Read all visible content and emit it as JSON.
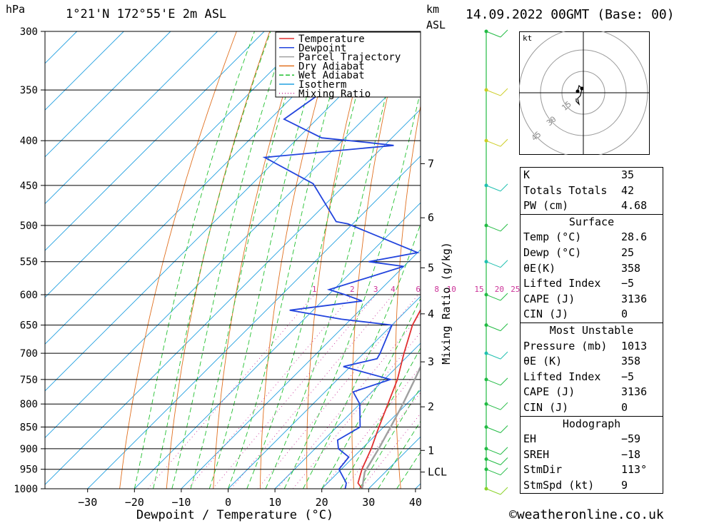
{
  "header": {
    "pressure_unit": "hPa",
    "location": "1°21'N  172°55'E  2m  ASL",
    "km_unit": "km",
    "asl_unit": "ASL",
    "datetime": "14.09.2022  00GMT  (Base: 00)"
  },
  "credit": "©weatheronline.co.uk",
  "chart_data": {
    "type": "line",
    "title": "1°21'N  172°55'E  2m  ASL",
    "xlabel": "Dewpoint / Temperature (°C)",
    "ylabel": "hPa",
    "right_axis_label": "Mixing Ratio (g/kg)",
    "x_ticks": [
      -30,
      -20,
      -10,
      0,
      10,
      20,
      30,
      40
    ],
    "x_tick_labels": [
      "−30",
      "−20",
      "−10",
      "0",
      "10",
      "20",
      "30",
      "40"
    ],
    "pressure_levels": [
      300,
      350,
      400,
      450,
      500,
      550,
      600,
      650,
      700,
      750,
      800,
      850,
      900,
      950,
      1000
    ],
    "xlim": [
      -40,
      40
    ],
    "ylim": [
      1000,
      300
    ],
    "y_scale": "log",
    "skew": "45°",
    "km_ticks": [
      {
        "label": "7",
        "pressure": 425
      },
      {
        "label": "6",
        "pressure": 490
      },
      {
        "label": "5",
        "pressure": 559
      },
      {
        "label": "4",
        "pressure": 631
      },
      {
        "label": "3",
        "pressure": 716
      },
      {
        "label": "2",
        "pressure": 806
      },
      {
        "label": "1",
        "pressure": 904
      },
      {
        "label": "LCL",
        "pressure": 957
      }
    ],
    "mixing_ratio_labels": [
      "1",
      "2",
      "3",
      "4",
      "6",
      "8",
      "10",
      "15",
      "20",
      "25"
    ],
    "legend": [
      "Temperature",
      "Dewpoint",
      "Parcel Trajectory",
      "Dry Adiabat",
      "Wet Adiabat",
      "Isotherm",
      "Mixing Ratio"
    ],
    "legend_position": "top-right",
    "grid": true,
    "series": [
      {
        "name": "Temperature",
        "color": "#e03030",
        "points": [
          [
            1000,
            28.6
          ],
          [
            985,
            26.5
          ],
          [
            950,
            24.4
          ],
          [
            900,
            22
          ],
          [
            850,
            19
          ],
          [
            800,
            16
          ],
          [
            750,
            12.8
          ],
          [
            700,
            8.6
          ],
          [
            650,
            4.4
          ],
          [
            600,
            1.4
          ],
          [
            575,
            -0.9
          ],
          [
            550,
            -2
          ],
          [
            525,
            -4.2
          ],
          [
            500,
            -6.2
          ],
          [
            450,
            -11.5
          ],
          [
            400,
            -17.5
          ],
          [
            385,
            -18.5
          ],
          [
            350,
            -25
          ],
          [
            300,
            -33
          ]
        ]
      },
      {
        "name": "Dewpoint",
        "color": "#2244dd",
        "points": [
          [
            1000,
            25
          ],
          [
            985,
            24
          ],
          [
            950,
            19.5
          ],
          [
            920,
            19
          ],
          [
            900,
            15
          ],
          [
            880,
            13
          ],
          [
            850,
            15
          ],
          [
            800,
            10
          ],
          [
            775,
            6
          ],
          [
            750,
            11.3
          ],
          [
            725,
            -1.5
          ],
          [
            710,
            4
          ],
          [
            700,
            3.5
          ],
          [
            650,
            0
          ],
          [
            640,
            -12
          ],
          [
            625,
            -25
          ],
          [
            610,
            -11.5
          ],
          [
            600,
            -16.5
          ],
          [
            592,
            -21
          ],
          [
            557,
            -10
          ],
          [
            550,
            -18.5
          ],
          [
            537,
            -10
          ],
          [
            498,
            -31
          ],
          [
            495,
            -34
          ],
          [
            448,
            -47
          ],
          [
            418,
            -63
          ],
          [
            405,
            -38
          ],
          [
            402,
            -44
          ],
          [
            397,
            -55
          ],
          [
            378,
            -67
          ],
          [
            345,
            -64
          ],
          [
            300,
            -59
          ]
        ]
      },
      {
        "name": "Parcel Trajectory",
        "color": "#a0a0a0",
        "points": [
          [
            1000,
            28.6
          ],
          [
            957,
            25.6
          ],
          [
            900,
            23.6
          ],
          [
            850,
            21.5
          ],
          [
            800,
            19.2
          ],
          [
            750,
            16.5
          ],
          [
            700,
            13.5
          ],
          [
            650,
            10.1
          ],
          [
            600,
            6.1
          ],
          [
            550,
            1.6
          ],
          [
            500,
            -3.6
          ],
          [
            450,
            -9.6
          ],
          [
            400,
            -16.5
          ],
          [
            350,
            -24.8
          ]
        ]
      }
    ],
    "wind_barbs": [
      {
        "pressure": 1000,
        "color": "#8bd32a"
      },
      {
        "pressure": 950,
        "color": "#22bb44"
      },
      {
        "pressure": 925,
        "color": "#22bb44"
      },
      {
        "pressure": 900,
        "color": "#22bb44"
      },
      {
        "pressure": 850,
        "color": "#22bb44"
      },
      {
        "pressure": 800,
        "color": "#22bb44"
      },
      {
        "pressure": 750,
        "color": "#22bb44"
      },
      {
        "pressure": 700,
        "color": "#20c0b0"
      },
      {
        "pressure": 650,
        "color": "#22bb44"
      },
      {
        "pressure": 600,
        "color": "#22bb44"
      },
      {
        "pressure": 550,
        "color": "#20c0b0"
      },
      {
        "pressure": 500,
        "color": "#22bb44"
      },
      {
        "pressure": 450,
        "color": "#20c0b0"
      },
      {
        "pressure": 400,
        "color": "#cccc22"
      },
      {
        "pressure": 350,
        "color": "#cccc22"
      },
      {
        "pressure": 300,
        "color": "#22bb44"
      }
    ]
  },
  "hodograph": {
    "unit_label": "kt",
    "ring_labels": [
      "15",
      "30",
      "45"
    ],
    "points_kt": [
      [
        -4,
        1
      ],
      [
        -3,
        5
      ],
      [
        -1,
        3
      ],
      [
        -2,
        -2
      ],
      [
        -4,
        -4
      ],
      [
        -3,
        -8
      ],
      [
        -5,
        -6
      ],
      [
        -5,
        -4
      ]
    ]
  },
  "indices": {
    "basic": [
      {
        "label": "K",
        "value": "35"
      },
      {
        "label": "Totals Totals",
        "value": "42"
      },
      {
        "label": "PW (cm)",
        "value": "4.68"
      }
    ],
    "surface": {
      "title": "Surface",
      "rows": [
        {
          "label": "Temp (°C)",
          "value": "28.6"
        },
        {
          "label": "Dewp (°C)",
          "value": "25"
        },
        {
          "label": "θE(K)",
          "value": "358"
        },
        {
          "label": "Lifted Index",
          "value": "−5"
        },
        {
          "label": "CAPE (J)",
          "value": "3136"
        },
        {
          "label": "CIN (J)",
          "value": "0"
        }
      ]
    },
    "most_unstable": {
      "title": "Most Unstable",
      "rows": [
        {
          "label": "Pressure (mb)",
          "value": "1013"
        },
        {
          "label": "θE (K)",
          "value": "358"
        },
        {
          "label": "Lifted Index",
          "value": "−5"
        },
        {
          "label": "CAPE (J)",
          "value": "3136"
        },
        {
          "label": "CIN (J)",
          "value": "0"
        }
      ]
    },
    "hodograph_stats": {
      "title": "Hodograph",
      "rows": [
        {
          "label": "EH",
          "value": "−59"
        },
        {
          "label": "SREH",
          "value": "−18"
        },
        {
          "label": "StmDir",
          "value": "113°"
        },
        {
          "label": "StmSpd (kt)",
          "value": "9"
        }
      ]
    }
  }
}
